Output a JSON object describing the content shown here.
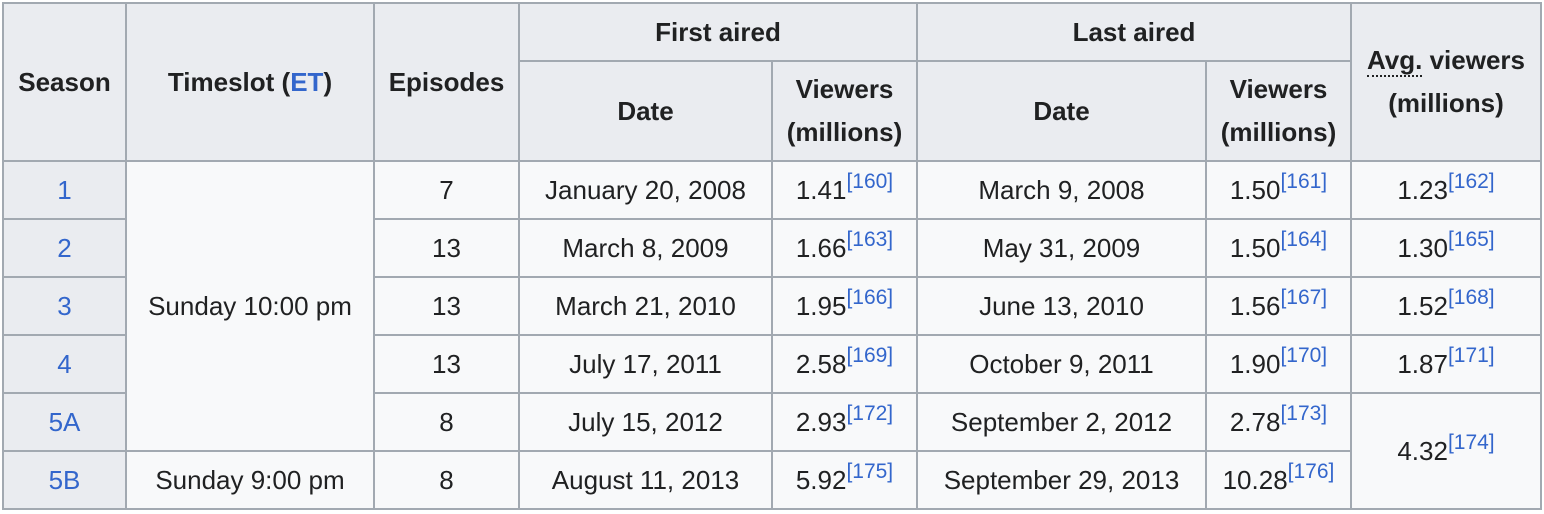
{
  "headers": {
    "season": "Season",
    "timeslot": "Timeslot (",
    "timeslot_link": "ET",
    "timeslot_close": ")",
    "episodes": "Episodes",
    "first_aired": "First aired",
    "last_aired": "Last aired",
    "avg_abbr": "Avg.",
    "avg_rest": " viewers",
    "avg_unit": "(millions)",
    "date": "Date",
    "viewers": "Viewers",
    "viewers_unit": "(millions)"
  },
  "timeslots": [
    "Sunday 10:00 pm",
    "Sunday 9:00 pm"
  ],
  "rows": [
    {
      "season": "1",
      "episodes": "7",
      "first_date": "January 20, 2008",
      "first_viewers": "1.41",
      "first_ref": "[160]",
      "last_date": "March 9, 2008",
      "last_viewers": "1.50",
      "last_ref": "[161]",
      "avg": "1.23",
      "avg_ref": "[162]"
    },
    {
      "season": "2",
      "episodes": "13",
      "first_date": "March 8, 2009",
      "first_viewers": "1.66",
      "first_ref": "[163]",
      "last_date": "May 31, 2009",
      "last_viewers": "1.50",
      "last_ref": "[164]",
      "avg": "1.30",
      "avg_ref": "[165]"
    },
    {
      "season": "3",
      "episodes": "13",
      "first_date": "March 21, 2010",
      "first_viewers": "1.95",
      "first_ref": "[166]",
      "last_date": "June 13, 2010",
      "last_viewers": "1.56",
      "last_ref": "[167]",
      "avg": "1.52",
      "avg_ref": "[168]"
    },
    {
      "season": "4",
      "episodes": "13",
      "first_date": "July 17, 2011",
      "first_viewers": "2.58",
      "first_ref": "[169]",
      "last_date": "October 9, 2011",
      "last_viewers": "1.90",
      "last_ref": "[170]",
      "avg": "1.87",
      "avg_ref": "[171]"
    },
    {
      "season": "5A",
      "episodes": "8",
      "first_date": "July 15, 2012",
      "first_viewers": "2.93",
      "first_ref": "[172]",
      "last_date": "September 2, 2012",
      "last_viewers": "2.78",
      "last_ref": "[173]",
      "avg": "4.32",
      "avg_ref": "[174]"
    },
    {
      "season": "5B",
      "episodes": "8",
      "first_date": "August 11, 2013",
      "first_viewers": "5.92",
      "first_ref": "[175]",
      "last_date": "September 29, 2013",
      "last_viewers": "10.28",
      "last_ref": "[176]"
    }
  ]
}
